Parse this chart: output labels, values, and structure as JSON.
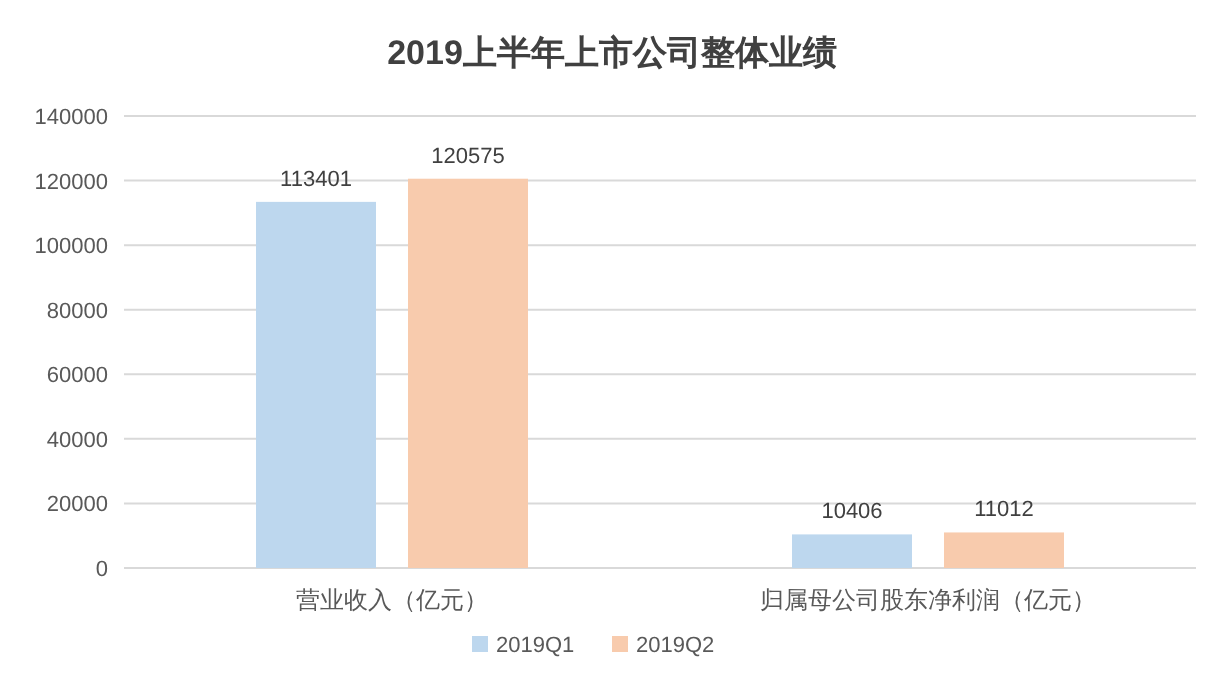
{
  "chart_data": {
    "type": "bar",
    "title": "2019上半年上市公司整体业绩",
    "categories": [
      "营业收入（亿元）",
      "归属母公司股东净利润（亿元）"
    ],
    "series": [
      {
        "name": "2019Q1",
        "color": "#bdd7ee",
        "values": [
          113401,
          10406
        ]
      },
      {
        "name": "2019Q2",
        "color": "#f8cbad",
        "values": [
          120575,
          11012
        ]
      }
    ],
    "ylim": [
      0,
      140000
    ],
    "yticks": [
      0,
      20000,
      40000,
      60000,
      80000,
      100000,
      120000,
      140000
    ],
    "grid": "y",
    "legend": "bottom",
    "data_labels": true
  }
}
